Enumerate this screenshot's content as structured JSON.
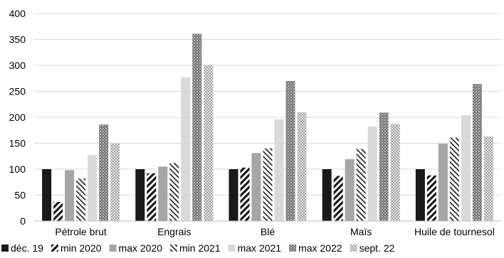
{
  "chart_data": {
    "type": "bar",
    "title": "",
    "xlabel": "",
    "ylabel": "",
    "ylim": [
      0,
      400
    ],
    "yticks": [
      0,
      50,
      100,
      150,
      200,
      250,
      300,
      350,
      400
    ],
    "grid": "horizontal",
    "legend_position": "bottom",
    "categories": [
      "Pétrole brut",
      "Engrais",
      "Blé",
      "Maïs",
      "Huile de tournesol"
    ],
    "series": [
      {
        "name": "déc. 19",
        "pattern": "solid-black",
        "values": [
          100,
          100,
          100,
          100,
          100
        ]
      },
      {
        "name": "min 2020",
        "pattern": "diagonal-thick",
        "values": [
          37,
          92,
          103,
          87,
          88
        ]
      },
      {
        "name": "max 2020",
        "pattern": "solid-gray",
        "values": [
          98,
          105,
          131,
          119,
          149
        ]
      },
      {
        "name": "min 2021",
        "pattern": "diagonal-thin",
        "values": [
          82,
          112,
          140,
          139,
          161
        ]
      },
      {
        "name": "max 2021",
        "pattern": "solid-lightgray",
        "values": [
          127,
          277,
          196,
          182,
          204
        ]
      },
      {
        "name": "max 2022",
        "pattern": "grid-dark",
        "values": [
          186,
          361,
          270,
          209,
          264
        ]
      },
      {
        "name": "sept. 22",
        "pattern": "dots-light",
        "values": [
          150,
          301,
          210,
          187,
          163
        ]
      }
    ]
  }
}
